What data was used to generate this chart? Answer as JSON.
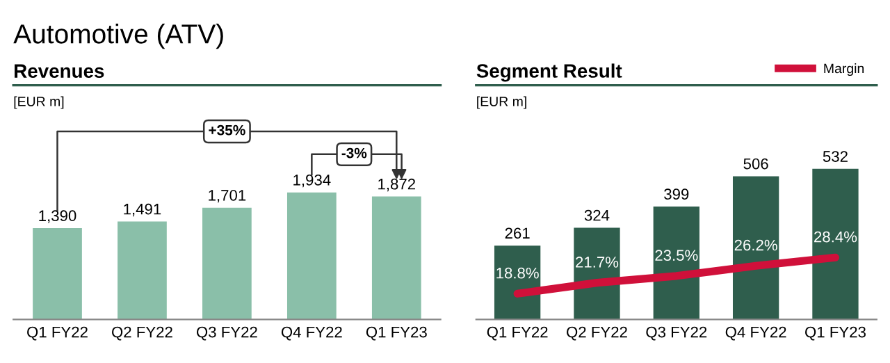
{
  "chart_data": [
    {
      "type": "bar",
      "title": "Revenues",
      "ylabel": "[EUR m]",
      "annotations": [
        "Automotive (ATV)",
        "+35%",
        "-3%"
      ],
      "categories": [
        "Q1 FY22",
        "Q2 FY22",
        "Q3 FY22",
        "Q4 FY22",
        "Q1 FY23"
      ],
      "series": [
        {
          "color": "#8abfa9",
          "values": [
            1390,
            1491,
            1701,
            1934,
            1872
          ],
          "value_labels": [
            "1,390",
            "1,491",
            "1,701",
            "1,934",
            "1,872"
          ]
        }
      ],
      "grid": false,
      "legend": false
    },
    {
      "type": "bar",
      "title": "Segment Result",
      "ylabel": "[EUR m]",
      "categories": [
        "Q1 FY22",
        "Q2 FY22",
        "Q3 FY22",
        "Q4 FY22",
        "Q1 FY23"
      ],
      "series": [
        {
          "color": "#2f5e4d",
          "values": [
            261,
            324,
            399,
            506,
            532
          ],
          "value_labels": [
            "261",
            "324",
            "399",
            "506",
            "532"
          ]
        },
        {
          "type": "line",
          "axis": "y2",
          "name": "Margin",
          "color": "#d0103a",
          "values": [
            18.8,
            21.7,
            23.5,
            26.2,
            28.4
          ],
          "value_labels": [
            "18.8%",
            "21.7%",
            "23.5%",
            "26.2%",
            "28.4%"
          ]
        }
      ],
      "grid": false,
      "legend": "top right"
    }
  ]
}
